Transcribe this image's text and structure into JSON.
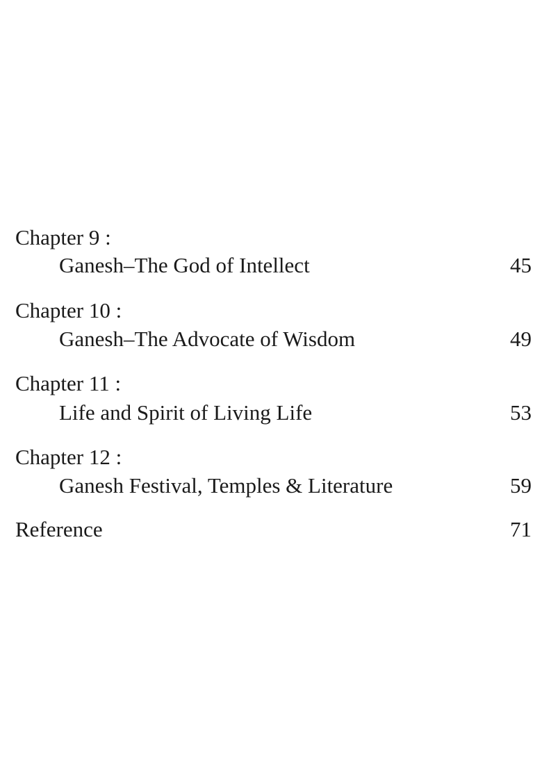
{
  "toc": {
    "entries": [
      {
        "chapter": "Chapter 9 :",
        "title": "Ganesh–The God of Intellect",
        "page": "45"
      },
      {
        "chapter": "Chapter 10 :",
        "title": "Ganesh–The Advocate of Wisdom",
        "page": "49"
      },
      {
        "chapter": "Chapter 11 :",
        "title": "Life and Spirit of Living Life",
        "page": "53"
      },
      {
        "chapter": "Chapter 12 :",
        "title": "Ganesh Festival, Temples & Literature",
        "page": "59"
      }
    ],
    "reference": {
      "title": "Reference",
      "page": "71"
    }
  }
}
